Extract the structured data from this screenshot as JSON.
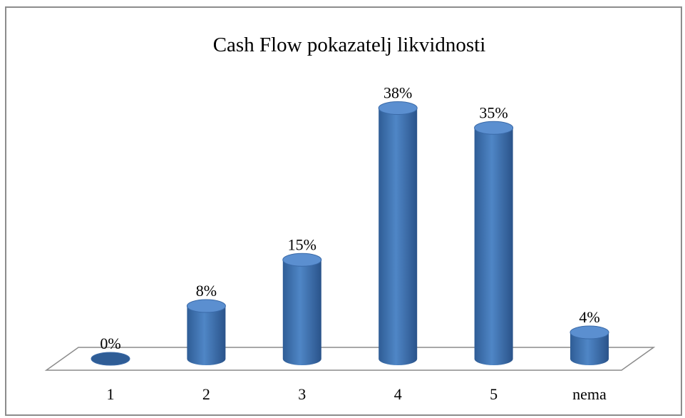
{
  "chart_data": {
    "type": "bar",
    "title": "Cash Flow pokazatelj likvidnosti",
    "categories": [
      "1",
      "2",
      "3",
      "4",
      "5",
      "nema"
    ],
    "values": [
      0,
      8,
      15,
      38,
      35,
      4
    ],
    "value_labels": [
      "0%",
      "8%",
      "15%",
      "38%",
      "35%",
      "4%"
    ],
    "color": "#4a7ebb"
  }
}
